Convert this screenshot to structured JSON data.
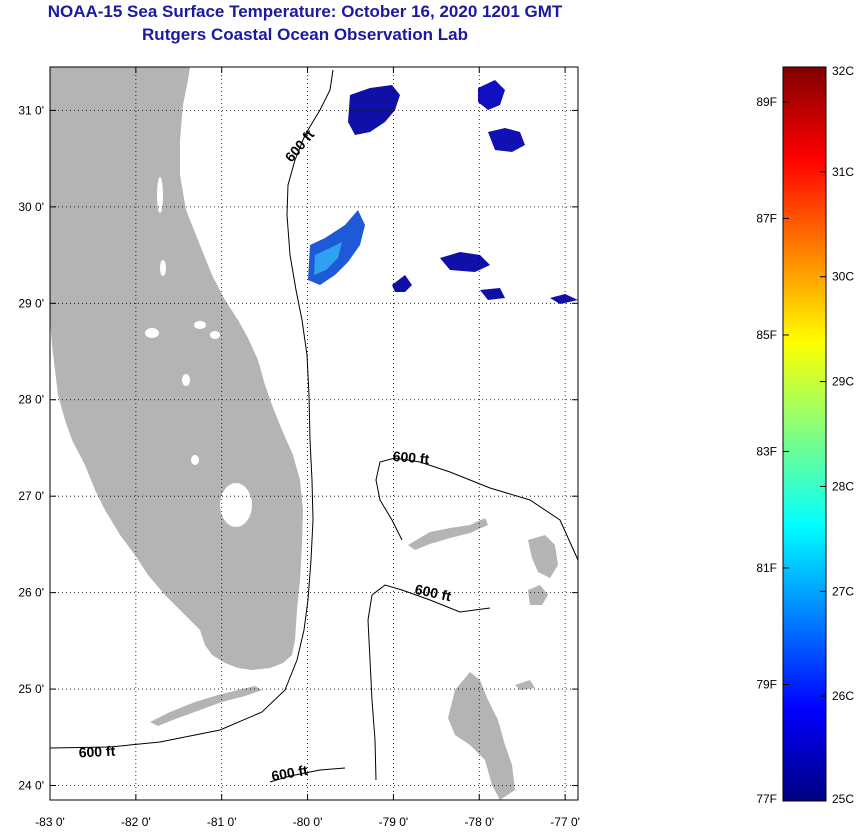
{
  "title": "NOAA-15 Sea Surface Temperature:  October 16, 2020 1201 GMT",
  "subtitle": "Rutgers Coastal Ocean Observation Lab",
  "map": {
    "lon_range": [
      -83.0,
      -76.85
    ],
    "lat_range": [
      23.85,
      31.45
    ],
    "lon_ticks": [
      {
        "value": -83,
        "label": "-83 0'"
      },
      {
        "value": -82,
        "label": "-82 0'"
      },
      {
        "value": -81,
        "label": "-81 0'"
      },
      {
        "value": -80,
        "label": "-80 0'"
      },
      {
        "value": -79,
        "label": "-79 0'"
      },
      {
        "value": -78,
        "label": "-78 0'"
      },
      {
        "value": -77,
        "label": "-77 0'"
      }
    ],
    "lat_ticks": [
      {
        "value": 31,
        "label": "31 0'"
      },
      {
        "value": 30,
        "label": "30 0'"
      },
      {
        "value": 29,
        "label": "29 0'"
      },
      {
        "value": 28,
        "label": "28 0'"
      },
      {
        "value": 27,
        "label": "27 0'"
      },
      {
        "value": 26,
        "label": "26 0'"
      },
      {
        "value": 25,
        "label": "25 0'"
      },
      {
        "value": 24,
        "label": "24 0'"
      }
    ],
    "land_color": "#b4b4b4",
    "grid": "dotted",
    "contour_labels": [
      {
        "text": "600 ft",
        "lon": -80.05,
        "lat": 30.6,
        "rotate": -50
      },
      {
        "text": "600 ft",
        "lon": -78.8,
        "lat": 27.35,
        "rotate": 5
      },
      {
        "text": "600 ft",
        "lon": -78.55,
        "lat": 25.95,
        "rotate": 12
      },
      {
        "text": "600 ft",
        "lon": -82.45,
        "lat": 24.3,
        "rotate": -3
      },
      {
        "text": "600 ft",
        "lon": -80.2,
        "lat": 24.08,
        "rotate": -10
      }
    ]
  },
  "colorbar": {
    "colors": [
      "#000080",
      "#0000ff",
      "#0080ff",
      "#00ffff",
      "#80ff80",
      "#ffff00",
      "#ff8000",
      "#ff0000",
      "#800000"
    ],
    "celsius_labels": [
      "32C",
      "31C",
      "30C",
      "29C",
      "28C",
      "27C",
      "26C",
      "25C"
    ],
    "celsius_values": [
      32,
      31,
      30,
      29,
      28,
      27,
      26,
      25
    ],
    "fahrenheit_labels": [
      "89F",
      "87F",
      "85F",
      "83F",
      "81F",
      "79F",
      "77F"
    ],
    "fahrenheit_values": [
      89,
      87,
      85,
      83,
      81,
      79,
      77
    ],
    "range_c": [
      25,
      32
    ]
  },
  "sst_patches": [
    {
      "lon": -79.3,
      "lat": 31.1,
      "temp": 25.3
    },
    {
      "lon": -78.2,
      "lat": 31.1,
      "temp": 25.2
    },
    {
      "lon": -77.7,
      "lat": 30.7,
      "temp": 25.2
    },
    {
      "lon": -79.6,
      "lat": 29.6,
      "temp": 26.6
    },
    {
      "lon": -78.3,
      "lat": 29.4,
      "temp": 25.2
    }
  ]
}
